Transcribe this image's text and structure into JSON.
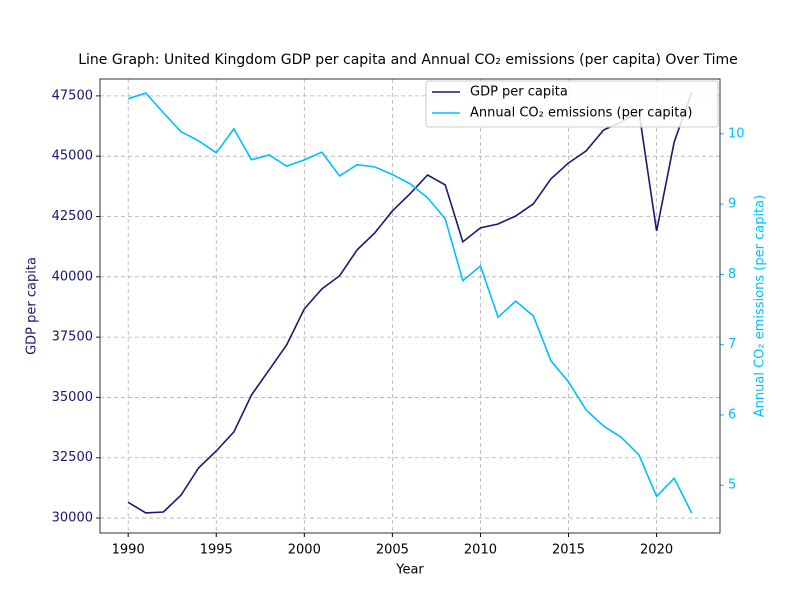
{
  "chart_data": {
    "type": "line",
    "title": "Line Graph: United Kingdom GDP per capita and Annual CO₂ emissions (per capita) Over Time",
    "xlabel": "Year",
    "ylabel": "GDP per capita",
    "y2label": "Annual CO₂ emissions (per capita)",
    "x": [
      1990,
      1991,
      1992,
      1993,
      1994,
      1995,
      1996,
      1997,
      1998,
      1999,
      2000,
      2001,
      2002,
      2003,
      2004,
      2005,
      2006,
      2007,
      2008,
      2009,
      2010,
      2011,
      2012,
      2013,
      2014,
      2015,
      2016,
      2017,
      2018,
      2019,
      2020,
      2021,
      2022
    ],
    "series": [
      {
        "name": "GDP per capita",
        "color": "#191970",
        "axis": "y",
        "values": [
          30650,
          30210,
          30250,
          30950,
          32080,
          32780,
          33570,
          35100,
          36140,
          37180,
          38670,
          39500,
          40040,
          41120,
          41820,
          42730,
          43440,
          44220,
          43810,
          41450,
          42030,
          42190,
          42520,
          43020,
          44060,
          44720,
          45220,
          46090,
          46420,
          46840,
          41900,
          45590,
          47660
        ]
      },
      {
        "name": "Annual CO₂ emissions (per capita)",
        "color": "#00bfff",
        "axis": "y2",
        "values": [
          10.5,
          10.58,
          10.3,
          10.03,
          9.9,
          9.73,
          10.07,
          9.63,
          9.7,
          9.54,
          9.63,
          9.74,
          9.4,
          9.56,
          9.53,
          9.42,
          9.29,
          9.09,
          8.79,
          7.91,
          8.12,
          7.39,
          7.62,
          7.41,
          6.77,
          6.47,
          6.07,
          5.84,
          5.68,
          5.43,
          4.84,
          5.1,
          4.6
        ]
      }
    ],
    "xlim": [
      1988.4,
      2023.6
    ],
    "xticks": [
      1990,
      1995,
      2000,
      2005,
      2010,
      2015,
      2020
    ],
    "ylim": [
      29380,
      48200
    ],
    "yticks": [
      30000,
      32500,
      35000,
      37500,
      40000,
      42500,
      45000,
      47500
    ],
    "y2lim": [
      4.32,
      10.78
    ],
    "y2ticks": [
      5,
      6,
      7,
      8,
      9,
      10
    ],
    "grid": true,
    "legend": "upper right"
  }
}
